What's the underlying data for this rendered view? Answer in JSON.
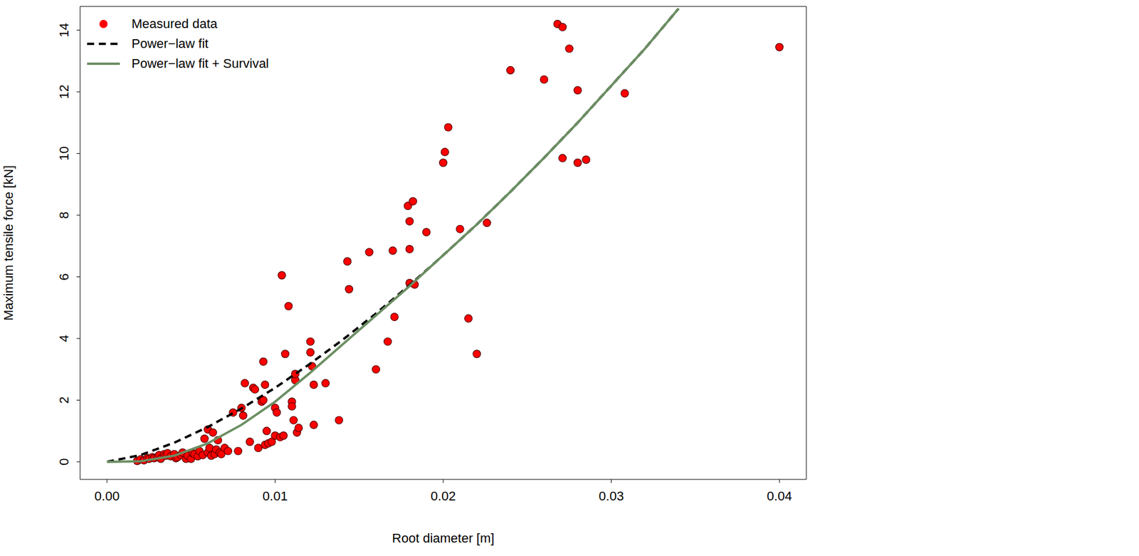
{
  "chart_data": {
    "type": "scatter",
    "x_label": "Root diameter [m]",
    "y_label": "Maximum tensile force [kN]",
    "xlim": [
      -0.0016,
      0.0416
    ],
    "ylim": [
      -0.57,
      14.77
    ],
    "xticks": [
      {
        "value": 0,
        "label": "0.00"
      },
      0.01,
      0.02,
      0.03,
      0.04
    ],
    "yticks": [
      0,
      2,
      4,
      6,
      8,
      10,
      12,
      14
    ],
    "grid": true,
    "legend": "top-left",
    "series": [
      {
        "name": "Measured data",
        "type": "scatter",
        "color": "#ff0000",
        "marker": "circle",
        "x": [
          0.0018,
          0.002,
          0.0022,
          0.0024,
          0.0025,
          0.0027,
          0.0028,
          0.003,
          0.0031,
          0.0032,
          0.0034,
          0.0035,
          0.0036,
          0.0038,
          0.004,
          0.0041,
          0.0042,
          0.0044,
          0.0045,
          0.0047,
          0.0048,
          0.005,
          0.0051,
          0.0052,
          0.0054,
          0.0055,
          0.0057,
          0.0058,
          0.006,
          0.006,
          0.0061,
          0.0062,
          0.0063,
          0.0064,
          0.0065,
          0.0066,
          0.0067,
          0.0068,
          0.007,
          0.0072,
          0.0075,
          0.0078,
          0.008,
          0.0081,
          0.0082,
          0.0085,
          0.0087,
          0.0088,
          0.009,
          0.0092,
          0.0093,
          0.0093,
          0.0094,
          0.0094,
          0.0095,
          0.0096,
          0.0098,
          0.01,
          0.01,
          0.0101,
          0.0103,
          0.0104,
          0.0105,
          0.0106,
          0.0108,
          0.011,
          0.011,
          0.0111,
          0.0112,
          0.0112,
          0.0113,
          0.0114,
          0.0121,
          0.0121,
          0.0122,
          0.0123,
          0.0123,
          0.013,
          0.0138,
          0.0143,
          0.0144,
          0.0156,
          0.016,
          0.0167,
          0.017,
          0.0171,
          0.0179,
          0.018,
          0.018,
          0.018,
          0.0182,
          0.0183,
          0.019,
          0.02,
          0.0201,
          0.0203,
          0.021,
          0.0215,
          0.022,
          0.0226,
          0.024,
          0.026,
          0.0268,
          0.0271,
          0.0271,
          0.0275,
          0.028,
          0.028,
          0.0285,
          0.0308,
          0.04
        ],
        "values": [
          0.03,
          0.08,
          0.05,
          0.12,
          0.1,
          0.15,
          0.12,
          0.15,
          0.22,
          0.1,
          0.25,
          0.2,
          0.28,
          0.18,
          0.25,
          0.12,
          0.15,
          0.22,
          0.3,
          0.1,
          0.2,
          0.1,
          0.28,
          0.25,
          0.18,
          0.35,
          0.22,
          0.75,
          1.05,
          0.3,
          0.45,
          0.2,
          0.95,
          0.25,
          0.4,
          0.7,
          0.3,
          0.25,
          0.45,
          0.35,
          1.6,
          0.35,
          1.75,
          1.5,
          2.55,
          0.65,
          2.4,
          2.35,
          0.45,
          1.95,
          2.0,
          3.25,
          2.5,
          0.55,
          1.0,
          0.6,
          0.65,
          1.75,
          0.85,
          1.6,
          0.8,
          6.05,
          0.85,
          3.5,
          5.05,
          1.95,
          1.8,
          1.35,
          2.65,
          2.85,
          0.95,
          1.1,
          3.9,
          3.55,
          3.1,
          2.5,
          1.2,
          2.55,
          1.35,
          6.5,
          5.6,
          6.8,
          3.0,
          3.9,
          6.85,
          4.7,
          8.3,
          6.9,
          7.8,
          5.8,
          8.45,
          5.75,
          7.45,
          9.7,
          10.05,
          10.85,
          7.55,
          4.65,
          3.5,
          7.75,
          12.7,
          12.4,
          14.2,
          14.1,
          9.85,
          13.4,
          12.05,
          9.7,
          9.8,
          11.95,
          13.45
        ]
      },
      {
        "name": "Power−law fit",
        "type": "line",
        "color": "#000000",
        "line_style": "dashed",
        "x": [
          0,
          0.002,
          0.004,
          0.006,
          0.008,
          0.01,
          0.012,
          0.014,
          0.016,
          0.018,
          0.02,
          0.022,
          0.024,
          0.026,
          0.028,
          0.03,
          0.032,
          0.034
        ],
        "values": [
          0,
          0.22,
          0.62,
          1.13,
          1.73,
          2.4,
          3.15,
          3.95,
          4.81,
          5.73,
          6.7,
          7.7,
          8.76,
          9.86,
          11.0,
          12.2,
          13.4,
          14.7
        ]
      },
      {
        "name": "Power−law fit + Survival",
        "type": "line",
        "color": "#6b8e62",
        "line_style": "solid",
        "x": [
          0,
          0.002,
          0.004,
          0.006,
          0.008,
          0.01,
          0.012,
          0.014,
          0.016,
          0.018,
          0.02,
          0.022,
          0.024,
          0.026,
          0.028,
          0.03,
          0.032,
          0.034
        ],
        "values": [
          0,
          0.02,
          0.2,
          0.6,
          1.2,
          1.95,
          2.85,
          3.8,
          4.75,
          5.7,
          6.7,
          7.7,
          8.76,
          9.86,
          11.0,
          12.2,
          13.4,
          14.7
        ]
      }
    ]
  }
}
